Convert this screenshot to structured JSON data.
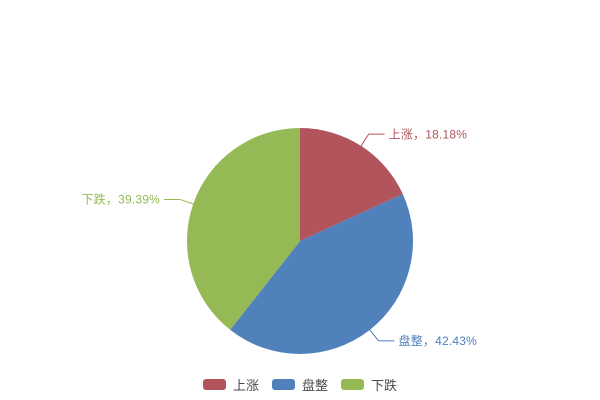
{
  "chart_data": {
    "type": "pie",
    "title": "",
    "background": "#ffffff",
    "direction": "clockwise",
    "start_angle_deg": 0,
    "legend_position": "bottom",
    "label_line": true,
    "slices": [
      {
        "key": "up",
        "name": "上涨",
        "value": 18.18,
        "percent_label": "18.18%",
        "label": "上涨，18.18%",
        "color": "#b1545c"
      },
      {
        "key": "flat",
        "name": "盘整",
        "value": 42.43,
        "percent_label": "42.43%",
        "label": "盘整，42.43%",
        "color": "#5081bb"
      },
      {
        "key": "down",
        "name": "下跌",
        "value": 39.39,
        "percent_label": "39.39%",
        "label": "下跌，39.39%",
        "color": "#95ba55"
      }
    ],
    "legend": [
      "上涨",
      "盘整",
      "下跌"
    ],
    "legend_text_color": "#4a4a4a"
  }
}
